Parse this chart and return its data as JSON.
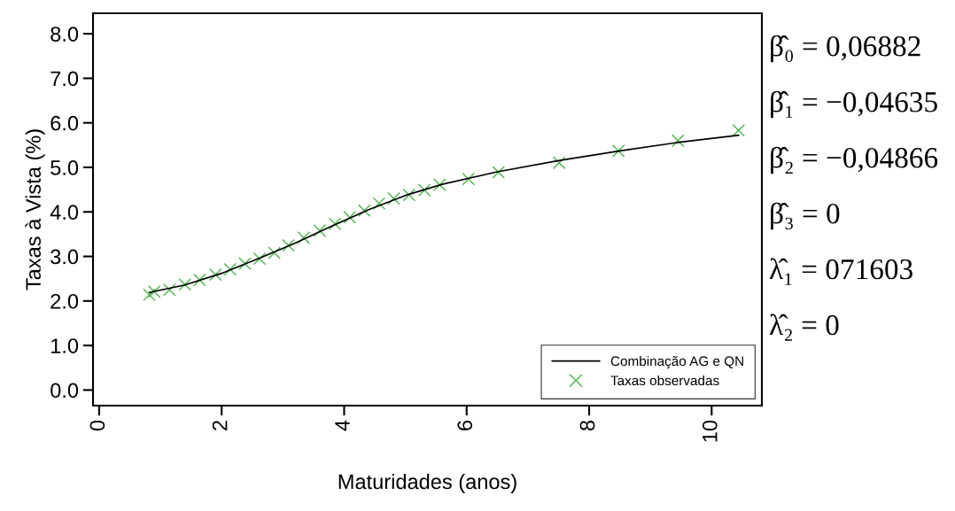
{
  "chart_data": {
    "type": "line",
    "xlabel": "Maturidades (anos)",
    "ylabel": "Taxas à Vista (%)",
    "xlim": [
      -0.1,
      10.82
    ],
    "ylim": [
      -0.35,
      8.46
    ],
    "xticks": [
      0,
      2,
      4,
      6,
      8,
      10
    ],
    "yticks": [
      {
        "value": 0,
        "label": "0.0"
      },
      {
        "value": 1,
        "label": "1.0"
      },
      {
        "value": 2,
        "label": "2.0"
      },
      {
        "value": 3,
        "label": "3.0"
      },
      {
        "value": 4,
        "label": "4.0"
      },
      {
        "value": 5,
        "label": "5.0"
      },
      {
        "value": 6,
        "label": "6.0"
      },
      {
        "value": 7,
        "label": "7.0"
      },
      {
        "value": 8,
        "label": "8.0"
      }
    ],
    "series": [
      {
        "name": "Combinação AG e QN",
        "color": "#000000",
        "marker": "none",
        "x": [
          0.82,
          1.4,
          2.0,
          2.6,
          3.2,
          3.8,
          4.4,
          5.0,
          5.6,
          6.5,
          7.5,
          8.5,
          9.5,
          10.44
        ],
        "values": [
          2.19,
          2.36,
          2.62,
          2.95,
          3.3,
          3.68,
          4.05,
          4.37,
          4.62,
          4.9,
          5.15,
          5.37,
          5.57,
          5.72
        ]
      },
      {
        "name": "Taxas observadas",
        "type": "scatter",
        "color": "#4cb44c",
        "marker": "cross",
        "x": [
          0.82,
          0.9,
          1.15,
          1.4,
          1.64,
          1.9,
          2.14,
          2.38,
          2.62,
          2.86,
          3.09,
          3.34,
          3.6,
          3.85,
          4.09,
          4.33,
          4.57,
          4.81,
          5.06,
          5.31,
          5.56,
          6.03,
          6.52,
          7.51,
          8.48,
          9.45,
          10.44
        ],
        "values": [
          2.14,
          2.21,
          2.25,
          2.37,
          2.47,
          2.59,
          2.71,
          2.84,
          2.95,
          3.08,
          3.25,
          3.42,
          3.58,
          3.73,
          3.88,
          4.03,
          4.19,
          4.3,
          4.38,
          4.49,
          4.61,
          4.74,
          4.89,
          5.1,
          5.37,
          5.6,
          5.83
        ]
      }
    ],
    "legend": "bottom right",
    "grid": false,
    "annotations": [
      "β̂₀ = 0,06882",
      "β̂₁ = −0,04635",
      "β̂₂ = −0,04866",
      "β̂₃ = 0",
      "λ̂₁ = 071603",
      "λ̂₂ = 0"
    ]
  }
}
